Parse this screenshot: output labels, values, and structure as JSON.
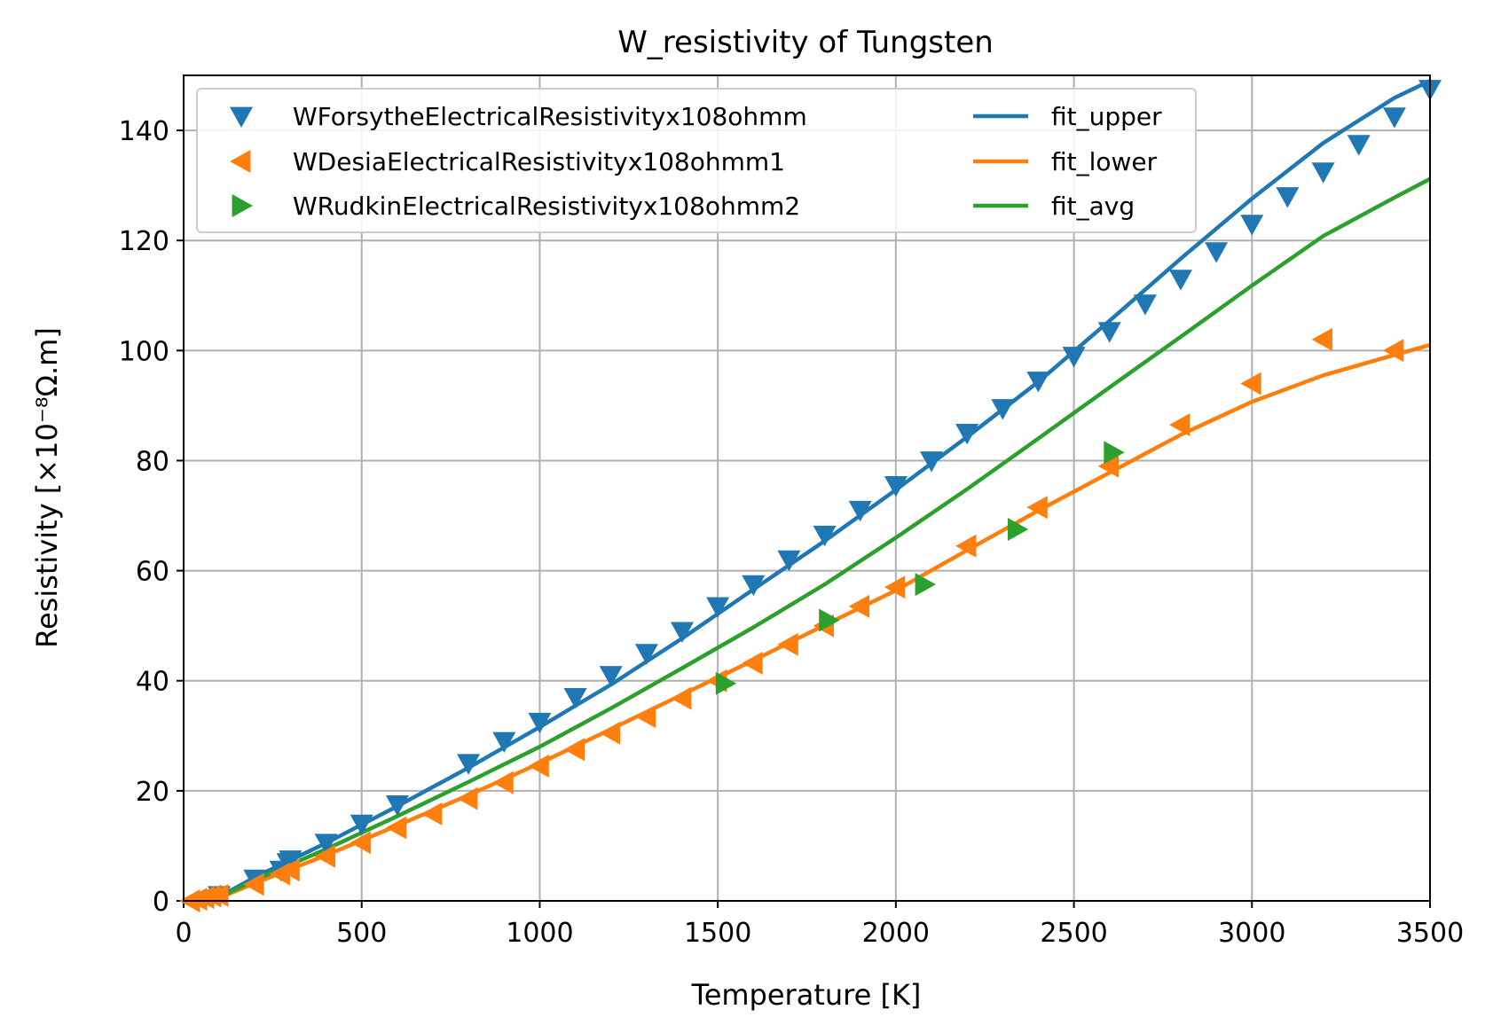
{
  "chart_data": {
    "type": "scatter",
    "title": "W_resistivity of Tungsten",
    "xlabel": "Temperature [K]",
    "ylabel": "Resistivity [×10⁻⁸Ω.m]",
    "xlim": [
      0,
      3500
    ],
    "ylim": [
      0,
      150
    ],
    "x_ticks": [
      "0",
      "500",
      "1000",
      "1500",
      "2000",
      "2500",
      "3000",
      "3500"
    ],
    "y_ticks": [
      "0",
      "20",
      "40",
      "60",
      "80",
      "100",
      "120",
      "140"
    ],
    "grid": true,
    "legend_position": "top-left",
    "legend_columns": 2,
    "scatter_series": [
      {
        "name": "WForsytheElectricalResistivityx108ohmm",
        "marker": "triangle-down",
        "color": "#1f77b4",
        "points": [
          [
            100,
            1
          ],
          [
            200,
            4
          ],
          [
            273,
            5.6
          ],
          [
            293,
            7
          ],
          [
            300,
            7.5
          ],
          [
            400,
            10.5
          ],
          [
            500,
            14
          ],
          [
            600,
            17.5
          ],
          [
            800,
            25
          ],
          [
            900,
            29
          ],
          [
            1000,
            32.5
          ],
          [
            1100,
            37
          ],
          [
            1200,
            41
          ],
          [
            1300,
            45
          ],
          [
            1400,
            49
          ],
          [
            1500,
            53.5
          ],
          [
            1600,
            57.5
          ],
          [
            1700,
            62
          ],
          [
            1800,
            66.5
          ],
          [
            1900,
            71
          ],
          [
            2000,
            75.5
          ],
          [
            2100,
            80
          ],
          [
            2200,
            85
          ],
          [
            2300,
            89.5
          ],
          [
            2400,
            94.5
          ],
          [
            2500,
            99
          ],
          [
            2600,
            103.5
          ],
          [
            2700,
            108.5
          ],
          [
            2800,
            113
          ],
          [
            2900,
            118
          ],
          [
            3000,
            123
          ],
          [
            3100,
            128
          ],
          [
            3200,
            132.5
          ],
          [
            3300,
            137.5
          ],
          [
            3400,
            142.5
          ],
          [
            3500,
            147.5
          ]
        ]
      },
      {
        "name": "WDesiaElectricalResistivityx108ohmm1",
        "marker": "triangle-left",
        "color": "#ff7f0e",
        "points": [
          [
            20,
            0
          ],
          [
            40,
            0.3
          ],
          [
            60,
            0.6
          ],
          [
            80,
            0.9
          ],
          [
            100,
            1
          ],
          [
            200,
            3
          ],
          [
            273,
            4.9
          ],
          [
            300,
            5.6
          ],
          [
            400,
            8.1
          ],
          [
            500,
            10.6
          ],
          [
            600,
            13.3
          ],
          [
            700,
            15.8
          ],
          [
            800,
            18.6
          ],
          [
            900,
            21.5
          ],
          [
            1000,
            24.5
          ],
          [
            1100,
            27.5
          ],
          [
            1200,
            30.5
          ],
          [
            1300,
            33.5
          ],
          [
            1400,
            36.8
          ],
          [
            1500,
            40
          ],
          [
            1600,
            43.2
          ],
          [
            1700,
            46.6
          ],
          [
            1800,
            50
          ],
          [
            1900,
            53.5
          ],
          [
            2000,
            57
          ],
          [
            2200,
            64.5
          ],
          [
            2400,
            71.5
          ],
          [
            2600,
            79
          ],
          [
            2800,
            86.5
          ],
          [
            3000,
            94
          ],
          [
            3200,
            102
          ],
          [
            3400,
            100
          ]
        ]
      },
      {
        "name": "WRudkinElectricalResistivityx108ohmm2",
        "marker": "triangle-right",
        "color": "#2ca02c",
        "points": [
          [
            1520,
            39.5
          ],
          [
            1810,
            51
          ],
          [
            2080,
            57.5
          ],
          [
            2340,
            67.5
          ],
          [
            2610,
            81.5
          ]
        ]
      }
    ],
    "line_series": [
      {
        "name": "fit_upper",
        "color": "#1f77b4",
        "x": [
          80,
          200,
          400,
          600,
          800,
          1000,
          1200,
          1400,
          1600,
          1800,
          2000,
          2200,
          2400,
          2600,
          2800,
          3000,
          3200,
          3400,
          3500
        ],
        "y": [
          0,
          4.3,
          10.5,
          17.2,
          24.2,
          31.6,
          39.3,
          47.7,
          56.6,
          65.4,
          74.7,
          84.3,
          94.3,
          105.4,
          116.7,
          127.6,
          137.7,
          145.9,
          149
        ]
      },
      {
        "name": "fit_lower",
        "color": "#ff7f0e",
        "x": [
          80,
          200,
          400,
          600,
          800,
          1000,
          1200,
          1400,
          1600,
          1800,
          2000,
          2200,
          2400,
          2600,
          2800,
          3000,
          3200,
          3400,
          3500
        ],
        "y": [
          0,
          3.2,
          8.3,
          13.7,
          19.2,
          25,
          31.2,
          37.5,
          43.7,
          50.1,
          56.4,
          63.7,
          70.9,
          77.8,
          84.7,
          90.7,
          95.5,
          99.2,
          101
        ]
      },
      {
        "name": "fit_avg",
        "color": "#2ca02c",
        "x": [
          80,
          200,
          400,
          600,
          800,
          1000,
          1200,
          1400,
          1600,
          1800,
          2000,
          2200,
          2400,
          2600,
          2800,
          3000,
          3200,
          3400,
          3500
        ],
        "y": [
          0,
          3.8,
          9.4,
          15.4,
          21.6,
          28,
          35,
          42.3,
          49.7,
          57.5,
          66,
          74.8,
          84,
          93.3,
          102.5,
          111.8,
          120.8,
          127.8,
          131.2
        ]
      }
    ]
  }
}
